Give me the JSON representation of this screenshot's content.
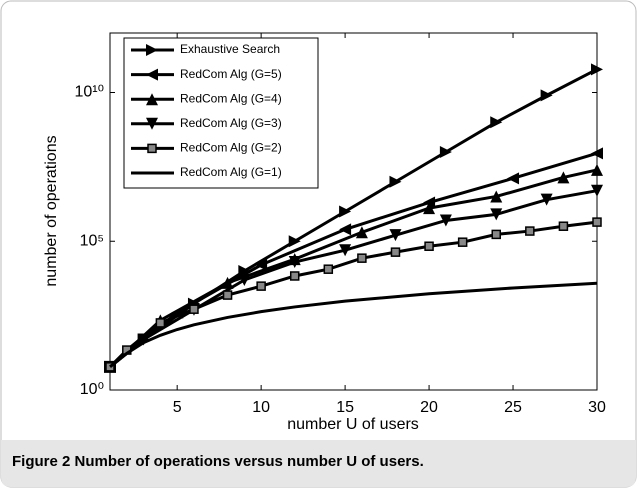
{
  "chart_data": {
    "type": "line",
    "xlabel": "number U of users",
    "ylabel": "number of operations",
    "caption": "Figure 2 Number of operations versus number U of users.",
    "log_y": true,
    "xlim": [
      1,
      30
    ],
    "ylim": [
      1,
      1000000000000.0
    ],
    "xticks": [
      5,
      10,
      15,
      20,
      25,
      30
    ],
    "yticks": [
      {
        "value": 1,
        "label": "10⁰"
      },
      {
        "value": 100000,
        "label": "10⁵"
      },
      {
        "value": 10000000000,
        "label": "10¹⁰"
      }
    ],
    "legend": "upper left",
    "series": [
      {
        "name": "Exhaustive Search",
        "color": "#000000",
        "marker": "triangle-right",
        "x": [
          1,
          3,
          6,
          9,
          12,
          15,
          18,
          21,
          24,
          27,
          30
        ],
        "values": [
          6,
          50,
          800,
          10000,
          100000,
          1000000,
          10000000,
          100000000,
          1000000000,
          8000000000,
          60000000000
        ]
      },
      {
        "name": "RedCom Alg (G=5)",
        "color": "#000000",
        "marker": "triangle-left",
        "x": [
          1,
          5,
          10,
          15,
          20,
          25,
          30
        ],
        "values": [
          6,
          400,
          16000,
          250000,
          2000000,
          13000000,
          90000000
        ]
      },
      {
        "name": "RedCom Alg (G=4)",
        "color": "#000000",
        "marker": "triangle-up",
        "x": [
          1,
          4,
          8,
          12,
          16,
          20,
          24,
          28,
          30
        ],
        "values": [
          6,
          220,
          4000,
          25000,
          200000,
          1300000,
          3200000,
          14000000,
          25000000
        ]
      },
      {
        "name": "RedCom Alg (G=3)",
        "color": "#000000",
        "marker": "triangle-down",
        "x": [
          1,
          3,
          6,
          9,
          12,
          15,
          18,
          21,
          24,
          27,
          30
        ],
        "values": [
          6,
          50,
          500,
          5000,
          20000,
          50000,
          160000,
          500000,
          800000,
          2500000,
          5000000
        ]
      },
      {
        "name": "RedCom Alg (G=2)",
        "color": "#000000",
        "marker": "square",
        "x": [
          1,
          2,
          4,
          6,
          8,
          10,
          12,
          14,
          16,
          18,
          20,
          22,
          24,
          26,
          28,
          30
        ],
        "values": [
          6,
          22,
          180,
          520,
          1550,
          3100,
          6800,
          11500,
          27000,
          43000,
          68000,
          93000,
          170000,
          220000,
          320000,
          440000
        ]
      },
      {
        "name": "RedCom Alg (G=1)",
        "color": "#000000",
        "marker": null,
        "x": [
          1,
          2,
          3,
          4,
          5,
          6,
          8,
          10,
          12,
          15,
          20,
          25,
          30
        ],
        "values": [
          6,
          17,
          39,
          69,
          108,
          155,
          275,
          430,
          620,
          970,
          1720,
          2690,
          3870
        ]
      }
    ]
  }
}
